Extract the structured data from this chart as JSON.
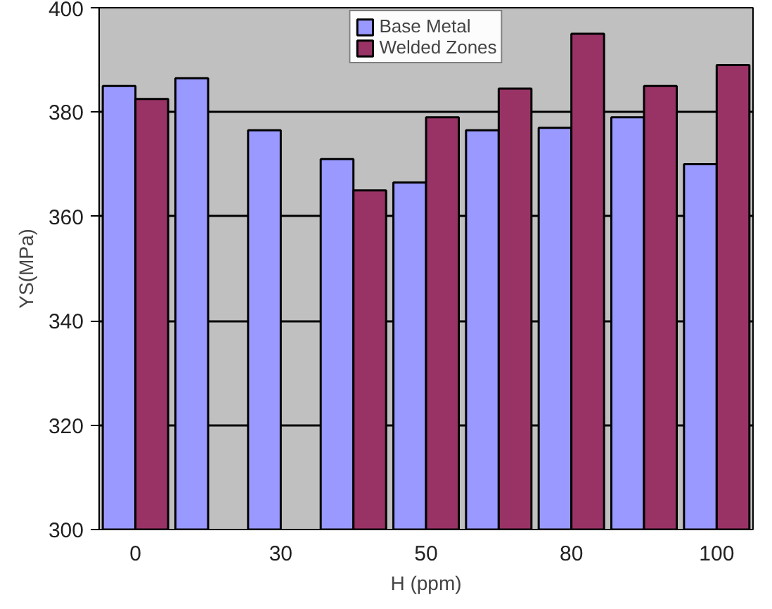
{
  "chart_data": {
    "type": "bar",
    "xlabel": "H (ppm)",
    "ylabel": "YS(MPa)",
    "categories": [
      "0",
      null,
      "30",
      null,
      "50",
      null,
      "80",
      null,
      "100"
    ],
    "series": [
      {
        "name": "Base Metal",
        "color": "#9999ff",
        "values": [
          385,
          386.5,
          376.5,
          371,
          366.5,
          376.5,
          377,
          379,
          370
        ]
      },
      {
        "name": "Welded Zones",
        "color": "#993366",
        "values": [
          382.5,
          null,
          null,
          365,
          379,
          384.5,
          395,
          385,
          389
        ]
      }
    ],
    "ylim": [
      300,
      400
    ],
    "yticks": [
      300,
      320,
      340,
      360,
      380,
      400
    ],
    "grid": "y",
    "legend": "top"
  }
}
